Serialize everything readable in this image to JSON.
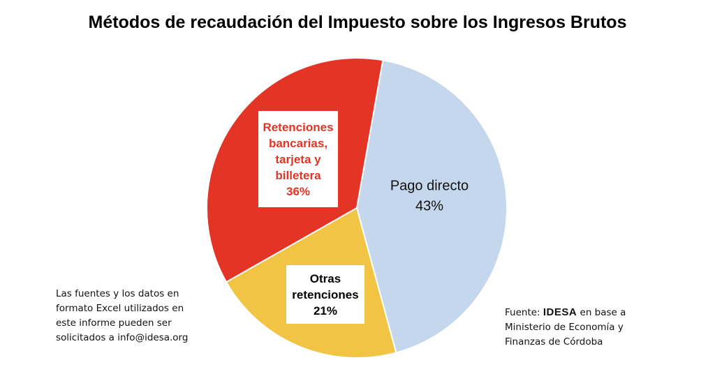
{
  "chart_data": {
    "type": "pie",
    "title": "Métodos de recaudación del Impuesto sobre los Ingresos Brutos",
    "slices": [
      {
        "name": "Pago directo",
        "value": 43,
        "value_label": "43%",
        "color": "#c5d7ec",
        "label_lines": [
          "Pago directo"
        ],
        "label_color": "#111111",
        "boxed": false
      },
      {
        "name": "Otras retenciones",
        "value": 21,
        "value_label": "21%",
        "color": "#f2c444",
        "label_lines": [
          "Otras",
          "retenciones"
        ],
        "label_color": "#000000",
        "boxed": true
      },
      {
        "name": "Retenciones bancarias, tarjeta y billetera",
        "value": 36,
        "value_label": "36%",
        "color": "#e43425",
        "label_lines": [
          "Retenciones",
          "bancarias,",
          "tarjeta y",
          "billetera"
        ],
        "label_color": "#e43425",
        "boxed": true
      }
    ]
  },
  "notes": {
    "left_lines": [
      "Las fuentes y los datos en",
      "formato Excel utilizados en",
      "este informe pueden ser",
      "solicitados a info@idesa.org"
    ],
    "source_prefix": "Fuente: ",
    "source_brand": "IDESA",
    "source_suffix": " en base a",
    "source_lines": [
      "Ministerio de Economía y",
      "Finanzas de Córdoba"
    ]
  }
}
